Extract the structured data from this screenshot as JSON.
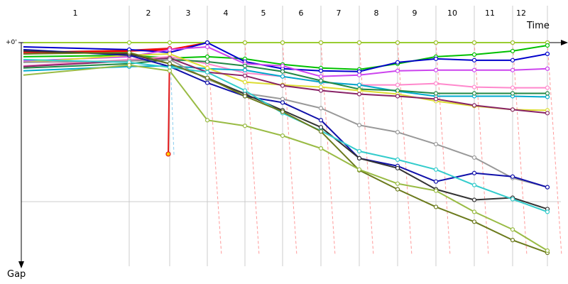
{
  "chart_data": {
    "type": "line",
    "title": "",
    "xlabel": "Time",
    "ylabel": "Gap",
    "zero_label": "+0'",
    "laps": [
      "1",
      "2",
      "3",
      "4",
      "5",
      "6",
      "7",
      "8",
      "9",
      "10",
      "11",
      "12"
    ],
    "grid": true,
    "ylim": [
      0,
      300
    ],
    "series": [
      {
        "color": "#e31a1c",
        "status": "dnf-lap-3",
        "values": [
          14,
          11,
          8,
          0,
          0,
          0,
          0,
          0,
          0,
          0,
          0,
          0,
          0
        ],
        "retired_value": 158,
        "retired_index": 3
      },
      {
        "color": "#ff0000",
        "values": [
          16,
          12,
          10,
          0,
          0,
          0,
          0,
          0,
          0,
          0,
          0,
          0,
          0
        ]
      },
      {
        "color": "#9acd32",
        "values": [
          0,
          0,
          0,
          0,
          0,
          0,
          0,
          0,
          0,
          0,
          0,
          0,
          0
        ]
      },
      {
        "color": "#00c000",
        "values": [
          20,
          18,
          22,
          20,
          23,
          31,
          36,
          38,
          30,
          20,
          17,
          12,
          4
        ]
      },
      {
        "color": "#0000cc",
        "values": [
          6,
          10,
          14,
          0,
          27,
          37,
          40,
          41,
          28,
          23,
          25,
          25,
          16
        ]
      },
      {
        "color": "#cc44ee",
        "values": [
          26,
          20,
          10,
          6,
          30,
          33,
          48,
          46,
          40,
          39,
          39,
          39,
          37
        ]
      },
      {
        "color": "#ff88cc",
        "values": [
          33,
          24,
          20,
          30,
          43,
          48,
          56,
          60,
          60,
          58,
          63,
          64,
          64
        ]
      },
      {
        "color": "#00aacc",
        "values": [
          40,
          34,
          33,
          37,
          39,
          48,
          56,
          60,
          69,
          76,
          76,
          76,
          77
        ]
      },
      {
        "color": "#228844",
        "values": [
          36,
          30,
          24,
          27,
          33,
          41,
          54,
          66,
          68,
          72,
          72,
          72,
          72
        ]
      },
      {
        "color": "#dddd33",
        "values": [
          28,
          18,
          16,
          36,
          56,
          60,
          63,
          68,
          73,
          83,
          90,
          95,
          96
        ]
      },
      {
        "color": "#882266",
        "values": [
          34,
          26,
          22,
          42,
          47,
          61,
          68,
          73,
          76,
          80,
          89,
          95,
          100
        ]
      },
      {
        "color": "#999999",
        "values": [
          28,
          26,
          24,
          52,
          72,
          80,
          93,
          117,
          127,
          144,
          163,
          192,
          205
        ]
      },
      {
        "color": "#1111aa",
        "values": [
          10,
          18,
          34,
          57,
          76,
          85,
          110,
          164,
          175,
          197,
          185,
          190,
          205
        ]
      },
      {
        "color": "#333333",
        "values": [
          12,
          16,
          30,
          50,
          73,
          96,
          120,
          164,
          178,
          208,
          223,
          220,
          236
        ]
      },
      {
        "color": "#33cccc",
        "values": [
          24,
          28,
          35,
          42,
          68,
          100,
          125,
          154,
          166,
          180,
          202,
          222,
          240
        ]
      },
      {
        "color": "#6b7a1c",
        "values": [
          16,
          14,
          30,
          50,
          76,
          98,
          126,
          181,
          208,
          233,
          254,
          280,
          298
        ]
      },
      {
        "color": "#99bb44",
        "values": [
          46,
          32,
          40,
          110,
          118,
          132,
          150,
          180,
          200,
          210,
          240,
          265,
          295
        ]
      }
    ]
  }
}
